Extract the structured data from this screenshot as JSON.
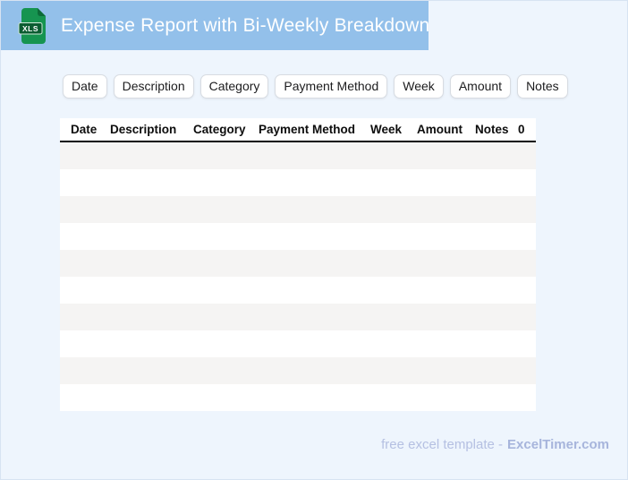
{
  "header": {
    "title": "Expense Report with Bi-Weekly Breakdown",
    "icon_label": "XLS",
    "background": "#93c0ea",
    "text_color": "#ffffff"
  },
  "chips": {
    "items": [
      "Date",
      "Description",
      "Category",
      "Payment Method",
      "Week",
      "Amount",
      "Notes"
    ]
  },
  "table": {
    "headers": [
      "Date",
      "Description",
      "Category",
      "Payment Method",
      "Week",
      "Amount",
      "Notes",
      "0"
    ],
    "row_count": 10,
    "rows_empty": true,
    "stripe_colors": [
      "#f5f4f3",
      "#ffffff"
    ]
  },
  "footer": {
    "prefix": "free excel template -",
    "brand": "ExcelTimer.com"
  },
  "colors": {
    "page_background": "#eef5fd",
    "page_border": "#d7e3f2",
    "banner": "#93c0ea",
    "icon_green": "#169450",
    "icon_dark_green": "#0b5c31",
    "header_rule": "#0a0a0a"
  }
}
